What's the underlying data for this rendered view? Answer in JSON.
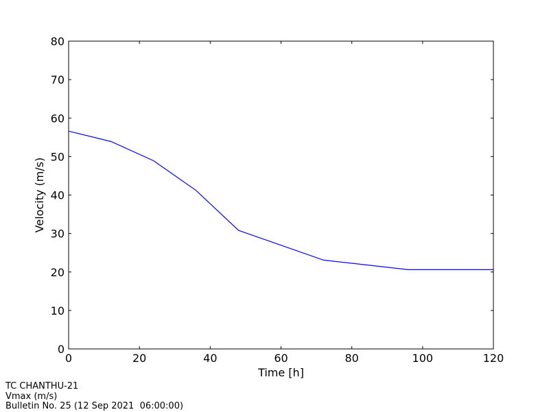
{
  "chart_data": {
    "type": "line",
    "title": "",
    "xlabel": "Time [h]",
    "ylabel": "Velocity (m/s)",
    "xlim": [
      0,
      120
    ],
    "ylim": [
      0,
      80
    ],
    "xticks": [
      0,
      20,
      40,
      60,
      80,
      100,
      120
    ],
    "yticks": [
      0,
      10,
      20,
      30,
      40,
      50,
      60,
      70,
      80
    ],
    "grid": false,
    "series": [
      {
        "color": "#0000ff",
        "x": [
          0,
          12,
          24,
          36,
          48,
          72,
          96,
          120
        ],
        "y": [
          56.6,
          53.9,
          48.9,
          41.2,
          30.8,
          23.1,
          20.6,
          20.6
        ]
      }
    ]
  },
  "footer": {
    "line1": "TC CHANTHU-21",
    "line2": "Vmax (m/s)",
    "line3": "Bulletin No. 25 (12 Sep 2021  06:00:00)"
  }
}
